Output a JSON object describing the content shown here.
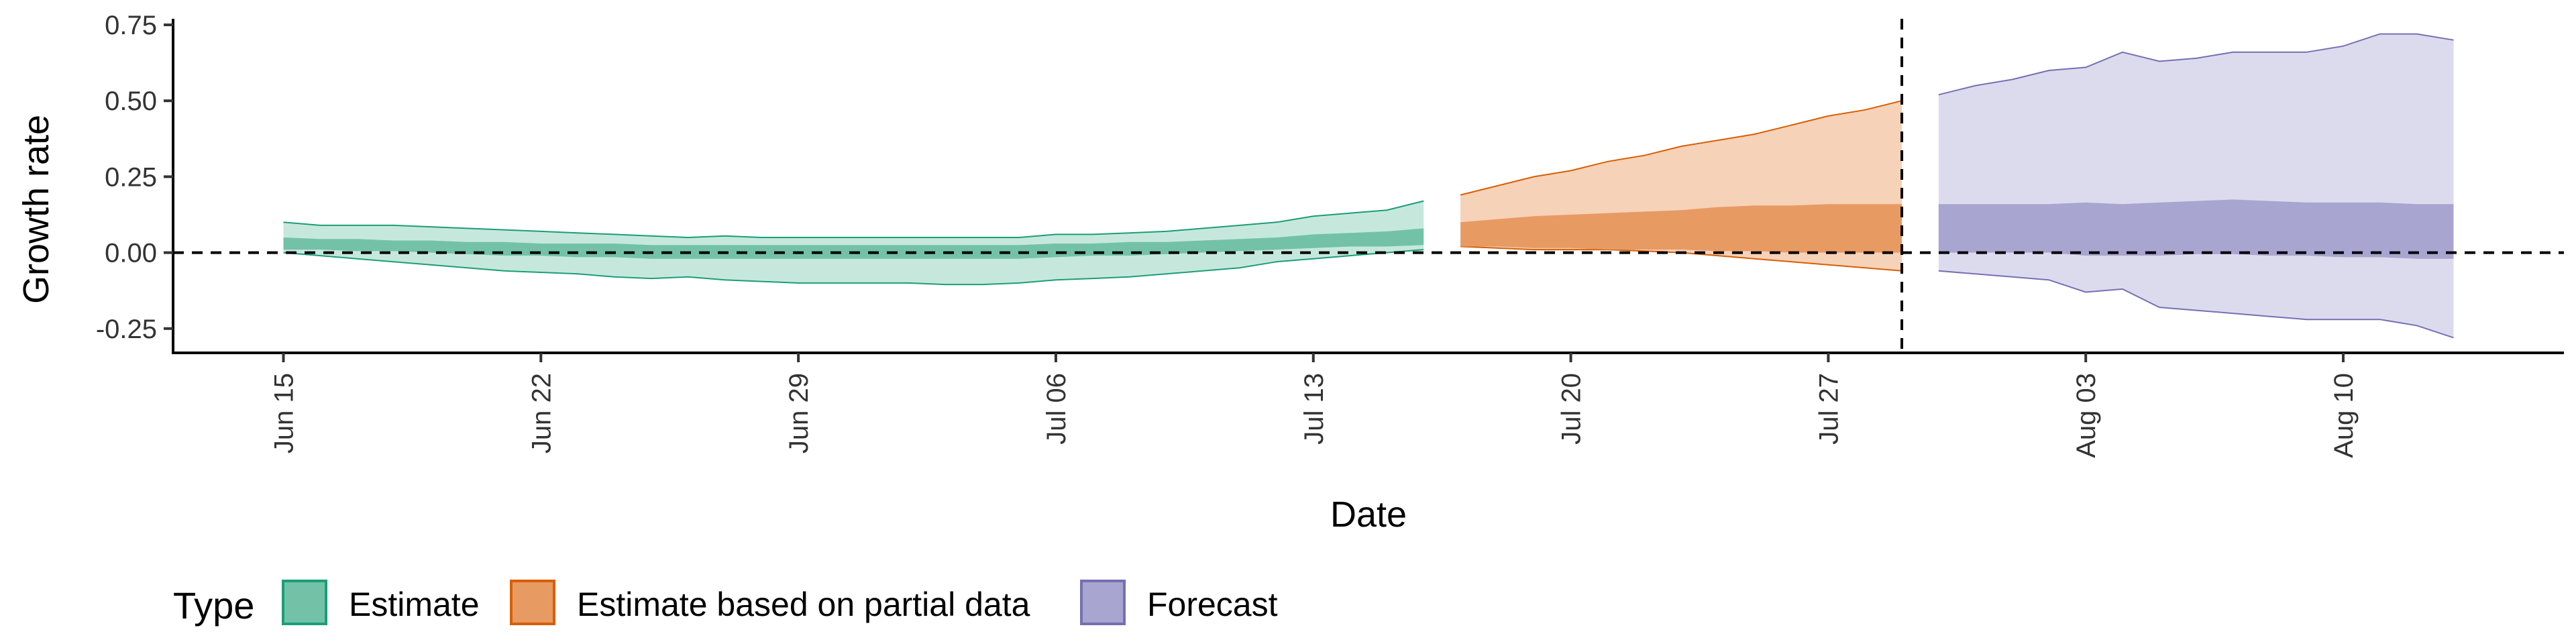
{
  "chart_data": {
    "type": "area",
    "xlabel": "Date",
    "ylabel": "Growth rate",
    "ylim": [
      -0.33,
      0.77
    ],
    "y_ticks": [
      -0.25,
      0.0,
      0.25,
      0.5,
      0.75
    ],
    "y_tick_labels": [
      "-0.25",
      "0.00",
      "0.25",
      "0.50",
      "0.75"
    ],
    "x_tick_dates": [
      "2020-06-15",
      "2020-06-22",
      "2020-06-29",
      "2020-07-06",
      "2020-07-13",
      "2020-07-20",
      "2020-07-27",
      "2020-08-03",
      "2020-08-10"
    ],
    "x_tick_labels": [
      "Jun 15",
      "Jun 22",
      "Jun 29",
      "Jul 06",
      "Jul 13",
      "Jul 20",
      "Jul 27",
      "Aug 03",
      "Aug 10"
    ],
    "xlim": [
      "2020-06-12",
      "2020-08-16"
    ],
    "reference_hline": 0.0,
    "reference_vline": "2020-07-29",
    "legend": {
      "title": "Type",
      "position": "bottom-left",
      "entries": [
        {
          "label": "Estimate",
          "fill": "#73c2a8",
          "stroke": "#1b9e77"
        },
        {
          "label": "Estimate based on partial data",
          "fill": "#e89a63",
          "stroke": "#d95f02"
        },
        {
          "label": "Forecast",
          "fill": "#a8a5d0",
          "stroke": "#7570b3"
        }
      ]
    },
    "series": [
      {
        "name": "Estimate",
        "color_outer": "#c6e8dc",
        "color_inner": "#73c2a8",
        "stroke": "#1b9e77",
        "dates": [
          "2020-06-15",
          "2020-06-16",
          "2020-06-17",
          "2020-06-18",
          "2020-06-19",
          "2020-06-20",
          "2020-06-21",
          "2020-06-22",
          "2020-06-23",
          "2020-06-24",
          "2020-06-25",
          "2020-06-26",
          "2020-06-27",
          "2020-06-28",
          "2020-06-29",
          "2020-06-30",
          "2020-07-01",
          "2020-07-02",
          "2020-07-03",
          "2020-07-04",
          "2020-07-05",
          "2020-07-06",
          "2020-07-07",
          "2020-07-08",
          "2020-07-09",
          "2020-07-10",
          "2020-07-11",
          "2020-07-12",
          "2020-07-13",
          "2020-07-14",
          "2020-07-15",
          "2020-07-16"
        ],
        "upper_90": [
          0.1,
          0.09,
          0.09,
          0.09,
          0.085,
          0.08,
          0.075,
          0.07,
          0.065,
          0.06,
          0.055,
          0.05,
          0.055,
          0.05,
          0.05,
          0.05,
          0.05,
          0.05,
          0.05,
          0.05,
          0.05,
          0.06,
          0.06,
          0.065,
          0.07,
          0.08,
          0.09,
          0.1,
          0.12,
          0.13,
          0.14,
          0.17
        ],
        "lower_90": [
          0.0,
          -0.01,
          -0.02,
          -0.03,
          -0.04,
          -0.05,
          -0.06,
          -0.065,
          -0.07,
          -0.08,
          -0.085,
          -0.08,
          -0.09,
          -0.095,
          -0.1,
          -0.1,
          -0.1,
          -0.1,
          -0.105,
          -0.105,
          -0.1,
          -0.09,
          -0.085,
          -0.08,
          -0.07,
          -0.06,
          -0.05,
          -0.03,
          -0.02,
          -0.01,
          0.0,
          0.01
        ],
        "upper_50": [
          0.05,
          0.045,
          0.045,
          0.04,
          0.04,
          0.035,
          0.035,
          0.03,
          0.03,
          0.03,
          0.025,
          0.025,
          0.025,
          0.025,
          0.025,
          0.025,
          0.025,
          0.025,
          0.025,
          0.025,
          0.025,
          0.03,
          0.03,
          0.035,
          0.035,
          0.04,
          0.045,
          0.05,
          0.06,
          0.065,
          0.07,
          0.08
        ],
        "lower_50": [
          0.01,
          0.01,
          0.005,
          0.005,
          0.0,
          -0.005,
          -0.01,
          -0.01,
          -0.015,
          -0.015,
          -0.02,
          -0.02,
          -0.02,
          -0.02,
          -0.02,
          -0.02,
          -0.02,
          -0.02,
          -0.02,
          -0.02,
          -0.02,
          -0.015,
          -0.01,
          -0.01,
          -0.005,
          0.0,
          0.005,
          0.01,
          0.015,
          0.02,
          0.02,
          0.025
        ]
      },
      {
        "name": "Estimate based on partial data",
        "color_outer": "#f6d2b8",
        "color_inner": "#e89a63",
        "stroke": "#d95f02",
        "dates": [
          "2020-07-17",
          "2020-07-18",
          "2020-07-19",
          "2020-07-20",
          "2020-07-21",
          "2020-07-22",
          "2020-07-23",
          "2020-07-24",
          "2020-07-25",
          "2020-07-26",
          "2020-07-27",
          "2020-07-28",
          "2020-07-29"
        ],
        "upper_90": [
          0.19,
          0.22,
          0.25,
          0.27,
          0.3,
          0.32,
          0.35,
          0.37,
          0.39,
          0.42,
          0.45,
          0.47,
          0.5
        ],
        "lower_90": [
          0.02,
          0.015,
          0.01,
          0.01,
          0.01,
          0.005,
          0.0,
          -0.01,
          -0.02,
          -0.03,
          -0.04,
          -0.05,
          -0.06
        ],
        "upper_50": [
          0.1,
          0.11,
          0.12,
          0.125,
          0.13,
          0.135,
          0.14,
          0.15,
          0.155,
          0.155,
          0.16,
          0.16,
          0.16
        ],
        "lower_50": [
          0.02,
          0.02,
          0.015,
          0.015,
          0.01,
          0.01,
          0.01,
          0.005,
          0.005,
          0.0,
          0.0,
          0.0,
          0.0
        ]
      },
      {
        "name": "Forecast",
        "color_outer": "#dcdbee",
        "color_inner": "#a8a5d0",
        "stroke": "#7570b3",
        "dates": [
          "2020-07-30",
          "2020-07-31",
          "2020-08-01",
          "2020-08-02",
          "2020-08-03",
          "2020-08-04",
          "2020-08-05",
          "2020-08-06",
          "2020-08-07",
          "2020-08-08",
          "2020-08-09",
          "2020-08-10",
          "2020-08-11",
          "2020-08-12",
          "2020-08-13"
        ],
        "upper_90": [
          0.52,
          0.55,
          0.57,
          0.6,
          0.61,
          0.66,
          0.63,
          0.64,
          0.66,
          0.66,
          0.66,
          0.68,
          0.72,
          0.72,
          0.7
        ],
        "lower_90": [
          -0.06,
          -0.07,
          -0.08,
          -0.09,
          -0.13,
          -0.12,
          -0.18,
          -0.19,
          -0.2,
          -0.21,
          -0.22,
          -0.22,
          -0.22,
          -0.24,
          -0.28
        ],
        "upper_50": [
          0.16,
          0.16,
          0.16,
          0.16,
          0.165,
          0.16,
          0.165,
          0.17,
          0.175,
          0.17,
          0.165,
          0.165,
          0.165,
          0.16,
          0.16
        ],
        "lower_50": [
          0.0,
          0.0,
          0.0,
          0.0,
          -0.01,
          -0.01,
          -0.01,
          -0.005,
          -0.005,
          -0.01,
          -0.01,
          -0.015,
          -0.015,
          -0.02,
          -0.02
        ]
      }
    ]
  }
}
